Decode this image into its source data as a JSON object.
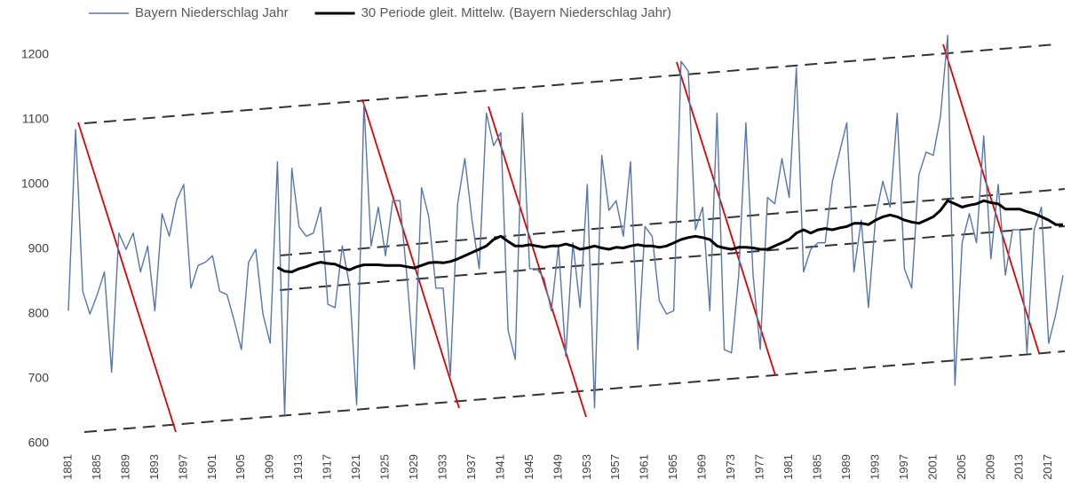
{
  "chart_data": {
    "type": "line",
    "x": [
      1881,
      1882,
      1883,
      1884,
      1885,
      1886,
      1887,
      1888,
      1889,
      1890,
      1891,
      1892,
      1893,
      1894,
      1895,
      1896,
      1897,
      1898,
      1899,
      1900,
      1901,
      1902,
      1903,
      1904,
      1905,
      1906,
      1907,
      1908,
      1909,
      1910,
      1911,
      1912,
      1913,
      1914,
      1915,
      1916,
      1917,
      1918,
      1919,
      1920,
      1921,
      1922,
      1923,
      1924,
      1925,
      1926,
      1927,
      1928,
      1929,
      1930,
      1931,
      1932,
      1933,
      1934,
      1935,
      1936,
      1937,
      1938,
      1939,
      1940,
      1941,
      1942,
      1943,
      1944,
      1945,
      1946,
      1947,
      1948,
      1949,
      1950,
      1951,
      1952,
      1953,
      1954,
      1955,
      1956,
      1957,
      1958,
      1959,
      1960,
      1961,
      1962,
      1963,
      1964,
      1965,
      1966,
      1967,
      1968,
      1969,
      1970,
      1971,
      1972,
      1973,
      1974,
      1975,
      1976,
      1977,
      1978,
      1979,
      1980,
      1981,
      1982,
      1983,
      1984,
      1985,
      1986,
      1987,
      1988,
      1989,
      1990,
      1991,
      1992,
      1993,
      1994,
      1995,
      1996,
      1997,
      1998,
      1999,
      2000,
      2001,
      2002,
      2003,
      2004,
      2005,
      2006,
      2007,
      2008,
      2009,
      2010,
      2011,
      2012,
      2013,
      2014,
      2015,
      2016,
      2017,
      2018,
      2019
    ],
    "series": [
      {
        "name": "Bayern Niederschlag Jahr",
        "color": "#5676ad",
        "width": 1.4,
        "values": [
          805,
          1085,
          835,
          800,
          830,
          865,
          710,
          925,
          900,
          925,
          865,
          905,
          805,
          955,
          920,
          975,
          1000,
          840,
          875,
          880,
          890,
          835,
          830,
          790,
          745,
          880,
          900,
          800,
          755,
          1035,
          645,
          1025,
          935,
          920,
          925,
          965,
          815,
          810,
          905,
          845,
          660,
          1125,
          905,
          965,
          890,
          975,
          975,
          855,
          715,
          995,
          950,
          840,
          840,
          705,
          970,
          1040,
          945,
          870,
          1110,
          1060,
          1080,
          775,
          730,
          1110,
          870,
          870,
          855,
          805,
          905,
          735,
          910,
          810,
          1000,
          655,
          1045,
          960,
          975,
          920,
          1035,
          745,
          935,
          920,
          820,
          800,
          805,
          1190,
          1175,
          930,
          965,
          805,
          1110,
          745,
          740,
          860,
          1095,
          860,
          745,
          980,
          970,
          1040,
          980,
          1180,
          865,
          900,
          910,
          910,
          1005,
          1050,
          1095,
          865,
          945,
          810,
          950,
          1005,
          965,
          1110,
          870,
          840,
          1015,
          1050,
          1045,
          1105,
          1230,
          690,
          910,
          955,
          910,
          1075,
          885,
          1000,
          860,
          930,
          930,
          740,
          930,
          965,
          755,
          800,
          860
        ]
      },
      {
        "name": "30 Periode gleit. Mittelw. (Bayern Niederschlag Jahr)",
        "color": "#000000",
        "width": 3,
        "values": [
          null,
          null,
          null,
          null,
          null,
          null,
          null,
          null,
          null,
          null,
          null,
          null,
          null,
          null,
          null,
          null,
          null,
          null,
          null,
          null,
          null,
          null,
          null,
          null,
          null,
          null,
          null,
          null,
          null,
          872,
          866,
          865,
          870,
          873,
          877,
          880,
          878,
          877,
          872,
          868,
          873,
          876,
          876,
          876,
          875,
          875,
          875,
          873,
          871,
          875,
          879,
          880,
          879,
          881,
          885,
          890,
          895,
          900,
          905,
          915,
          920,
          912,
          905,
          905,
          907,
          905,
          903,
          905,
          905,
          908,
          905,
          900,
          902,
          905,
          902,
          900,
          903,
          902,
          905,
          907,
          905,
          905,
          903,
          905,
          910,
          915,
          918,
          920,
          918,
          915,
          905,
          902,
          900,
          903,
          903,
          902,
          900,
          900,
          905,
          910,
          915,
          925,
          930,
          925,
          930,
          932,
          930,
          933,
          935,
          940,
          940,
          938,
          945,
          950,
          953,
          950,
          945,
          942,
          940,
          945,
          950,
          960,
          975,
          970,
          965,
          968,
          970,
          975,
          972,
          970,
          962,
          962,
          962,
          958,
          955,
          950,
          945,
          938,
          938
        ]
      }
    ],
    "xlim": [
      1881,
      2019
    ],
    "xticks": [
      1881,
      1885,
      1889,
      1893,
      1897,
      1901,
      1905,
      1909,
      1913,
      1917,
      1921,
      1925,
      1929,
      1933,
      1937,
      1941,
      1945,
      1949,
      1953,
      1957,
      1961,
      1965,
      1969,
      1973,
      1977,
      1981,
      1985,
      1989,
      1993,
      1997,
      2001,
      2005,
      2009,
      2013,
      2017
    ],
    "ylim": [
      600,
      1230
    ],
    "yticks": [
      600,
      700,
      800,
      900,
      1000,
      1100,
      1200
    ],
    "grid": false,
    "legend": "top"
  }
}
